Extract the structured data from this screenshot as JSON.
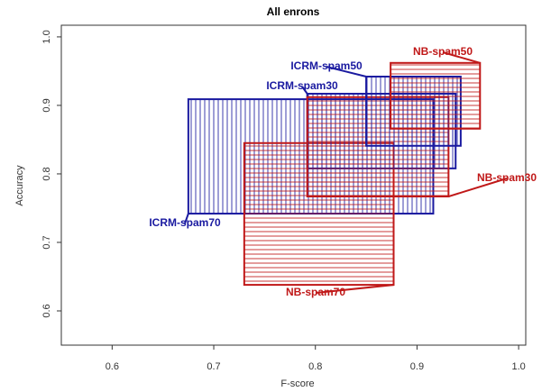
{
  "chart_data": {
    "type": "range-rect",
    "title": "All enrons",
    "x_label": "F-score",
    "y_label": "Accuracy",
    "xlim": [
      0.55,
      1.007
    ],
    "ylim": [
      0.55,
      1.017
    ],
    "xticks": [
      {
        "value": 0.6,
        "label": "0.6"
      },
      {
        "value": 0.7,
        "label": "0.7"
      },
      {
        "value": 0.8,
        "label": "0.8"
      },
      {
        "value": 0.9,
        "label": "0.9"
      },
      {
        "value": 1.0,
        "label": "1.0"
      }
    ],
    "yticks": [
      {
        "value": 0.6,
        "label": "0.6"
      },
      {
        "value": 0.7,
        "label": "0.7"
      },
      {
        "value": 0.8,
        "label": "0.8"
      },
      {
        "value": 0.9,
        "label": "0.9"
      },
      {
        "value": 1.0,
        "label": "1.0"
      }
    ],
    "series": [
      {
        "name": "ICRM-spam70",
        "color": "#1a1aa0",
        "hatch": "vertical",
        "xmin": 0.675,
        "xmax": 0.916,
        "ymin": 0.742,
        "ymax": 0.909
      },
      {
        "name": "NB-spam70",
        "color": "#c01818",
        "hatch": "horizontal",
        "xmin": 0.73,
        "xmax": 0.877,
        "ymin": 0.638,
        "ymax": 0.845
      },
      {
        "name": "ICRM-spam30",
        "color": "#1a1aa0",
        "hatch": "vertical",
        "xmin": 0.792,
        "xmax": 0.938,
        "ymin": 0.808,
        "ymax": 0.917
      },
      {
        "name": "NB-spam30",
        "color": "#c01818",
        "hatch": "horizontal",
        "xmin": 0.792,
        "xmax": 0.931,
        "ymin": 0.767,
        "ymax": 0.912
      },
      {
        "name": "ICRM-spam50",
        "color": "#1a1aa0",
        "hatch": "vertical",
        "xmin": 0.85,
        "xmax": 0.943,
        "ymin": 0.841,
        "ymax": 0.942
      },
      {
        "name": "NB-spam50",
        "color": "#c01818",
        "hatch": "horizontal",
        "xmin": 0.874,
        "xmax": 0.962,
        "ymin": 0.866,
        "ymax": 0.962
      }
    ]
  }
}
